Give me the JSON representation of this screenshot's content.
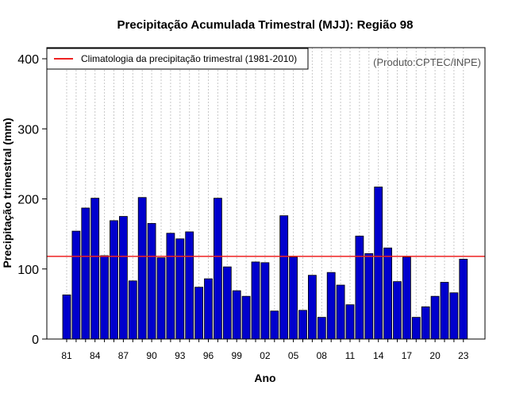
{
  "chart_data": {
    "type": "bar",
    "title": "Precipitação Acumulada Trimestral (MJJ): Região 98",
    "xlabel": "Ano",
    "ylabel": "Precipitação trimestral (mm)",
    "ylim": [
      0,
      400
    ],
    "yticks": [
      0,
      100,
      200,
      300,
      400
    ],
    "categories": [
      "81",
      "82",
      "83",
      "84",
      "85",
      "86",
      "87",
      "88",
      "89",
      "90",
      "91",
      "92",
      "93",
      "94",
      "95",
      "96",
      "97",
      "98",
      "99",
      "00",
      "01",
      "02",
      "03",
      "04",
      "05",
      "06",
      "07",
      "08",
      "09",
      "10",
      "11",
      "12",
      "13",
      "14",
      "15",
      "16",
      "17",
      "18",
      "19",
      "20",
      "21",
      "22",
      "23"
    ],
    "xtick_labels": [
      "81",
      "84",
      "87",
      "90",
      "93",
      "96",
      "99",
      "02",
      "05",
      "08",
      "11",
      "14",
      "17",
      "20",
      "23"
    ],
    "values": [
      63,
      154,
      187,
      201,
      119,
      169,
      175,
      83,
      202,
      165,
      116,
      151,
      143,
      153,
      74,
      86,
      201,
      103,
      69,
      61,
      110,
      109,
      40,
      176,
      117,
      41,
      91,
      31,
      95,
      77,
      49,
      147,
      122,
      217,
      130,
      82,
      117,
      31,
      46,
      61,
      81,
      66,
      114
    ],
    "bar_color": "#0000cd",
    "climatology": 118,
    "climatology_color": "#ee2222",
    "legend": {
      "label": "Climatologia da precipitação trimestral (1981-2010)",
      "position": "top-left"
    },
    "grid": "vertical-dotted",
    "annotation": "(Produto:CPTEC/INPE)"
  }
}
